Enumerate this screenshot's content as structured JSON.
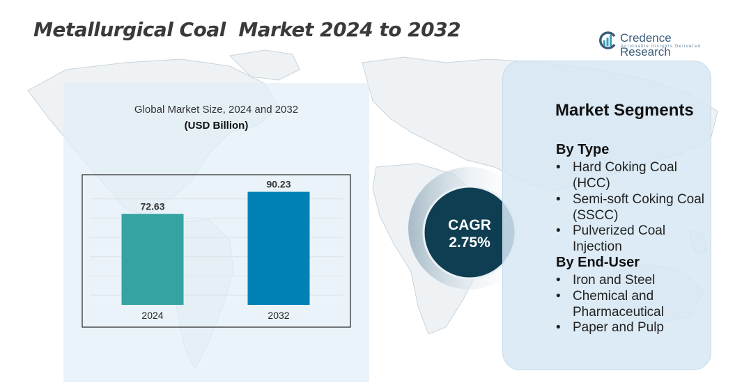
{
  "title": "Metallurgical Coal  Market 2024 to 2032",
  "logo": {
    "name": "Credence Research",
    "tagline": "Actionable Insights Delivered"
  },
  "chart_data": {
    "type": "bar",
    "title": "Global Market Size, 2024 and 2032",
    "subtitle": "(USD Billion)",
    "categories": [
      "2024",
      "2032"
    ],
    "values": [
      72.63,
      90.23
    ],
    "value_labels": [
      "72.63",
      "90.23"
    ],
    "colors": [
      "#35a3a1",
      "#0081b5"
    ],
    "ylim": [
      0,
      100
    ],
    "grid": true,
    "xlabel": "",
    "ylabel": ""
  },
  "cagr": {
    "label": "CAGR",
    "value": "2.75%"
  },
  "segments": {
    "title": "Market Segments",
    "groups": [
      {
        "heading": "By Type",
        "items": [
          "Hard Coking Coal (HCC)",
          "Semi-soft Coking Coal (SSCC)",
          "Pulverized Coal Injection"
        ]
      },
      {
        "heading": "By End-User",
        "items": [
          "Iron and Steel",
          "Chemical and Pharmaceutical",
          "Paper and Pulp"
        ]
      }
    ]
  },
  "colors": {
    "accent_dark": "#0f3e52",
    "panel_bg": "#d6e8f3",
    "bar_2024": "#35a3a1",
    "bar_2032": "#0081b5"
  }
}
